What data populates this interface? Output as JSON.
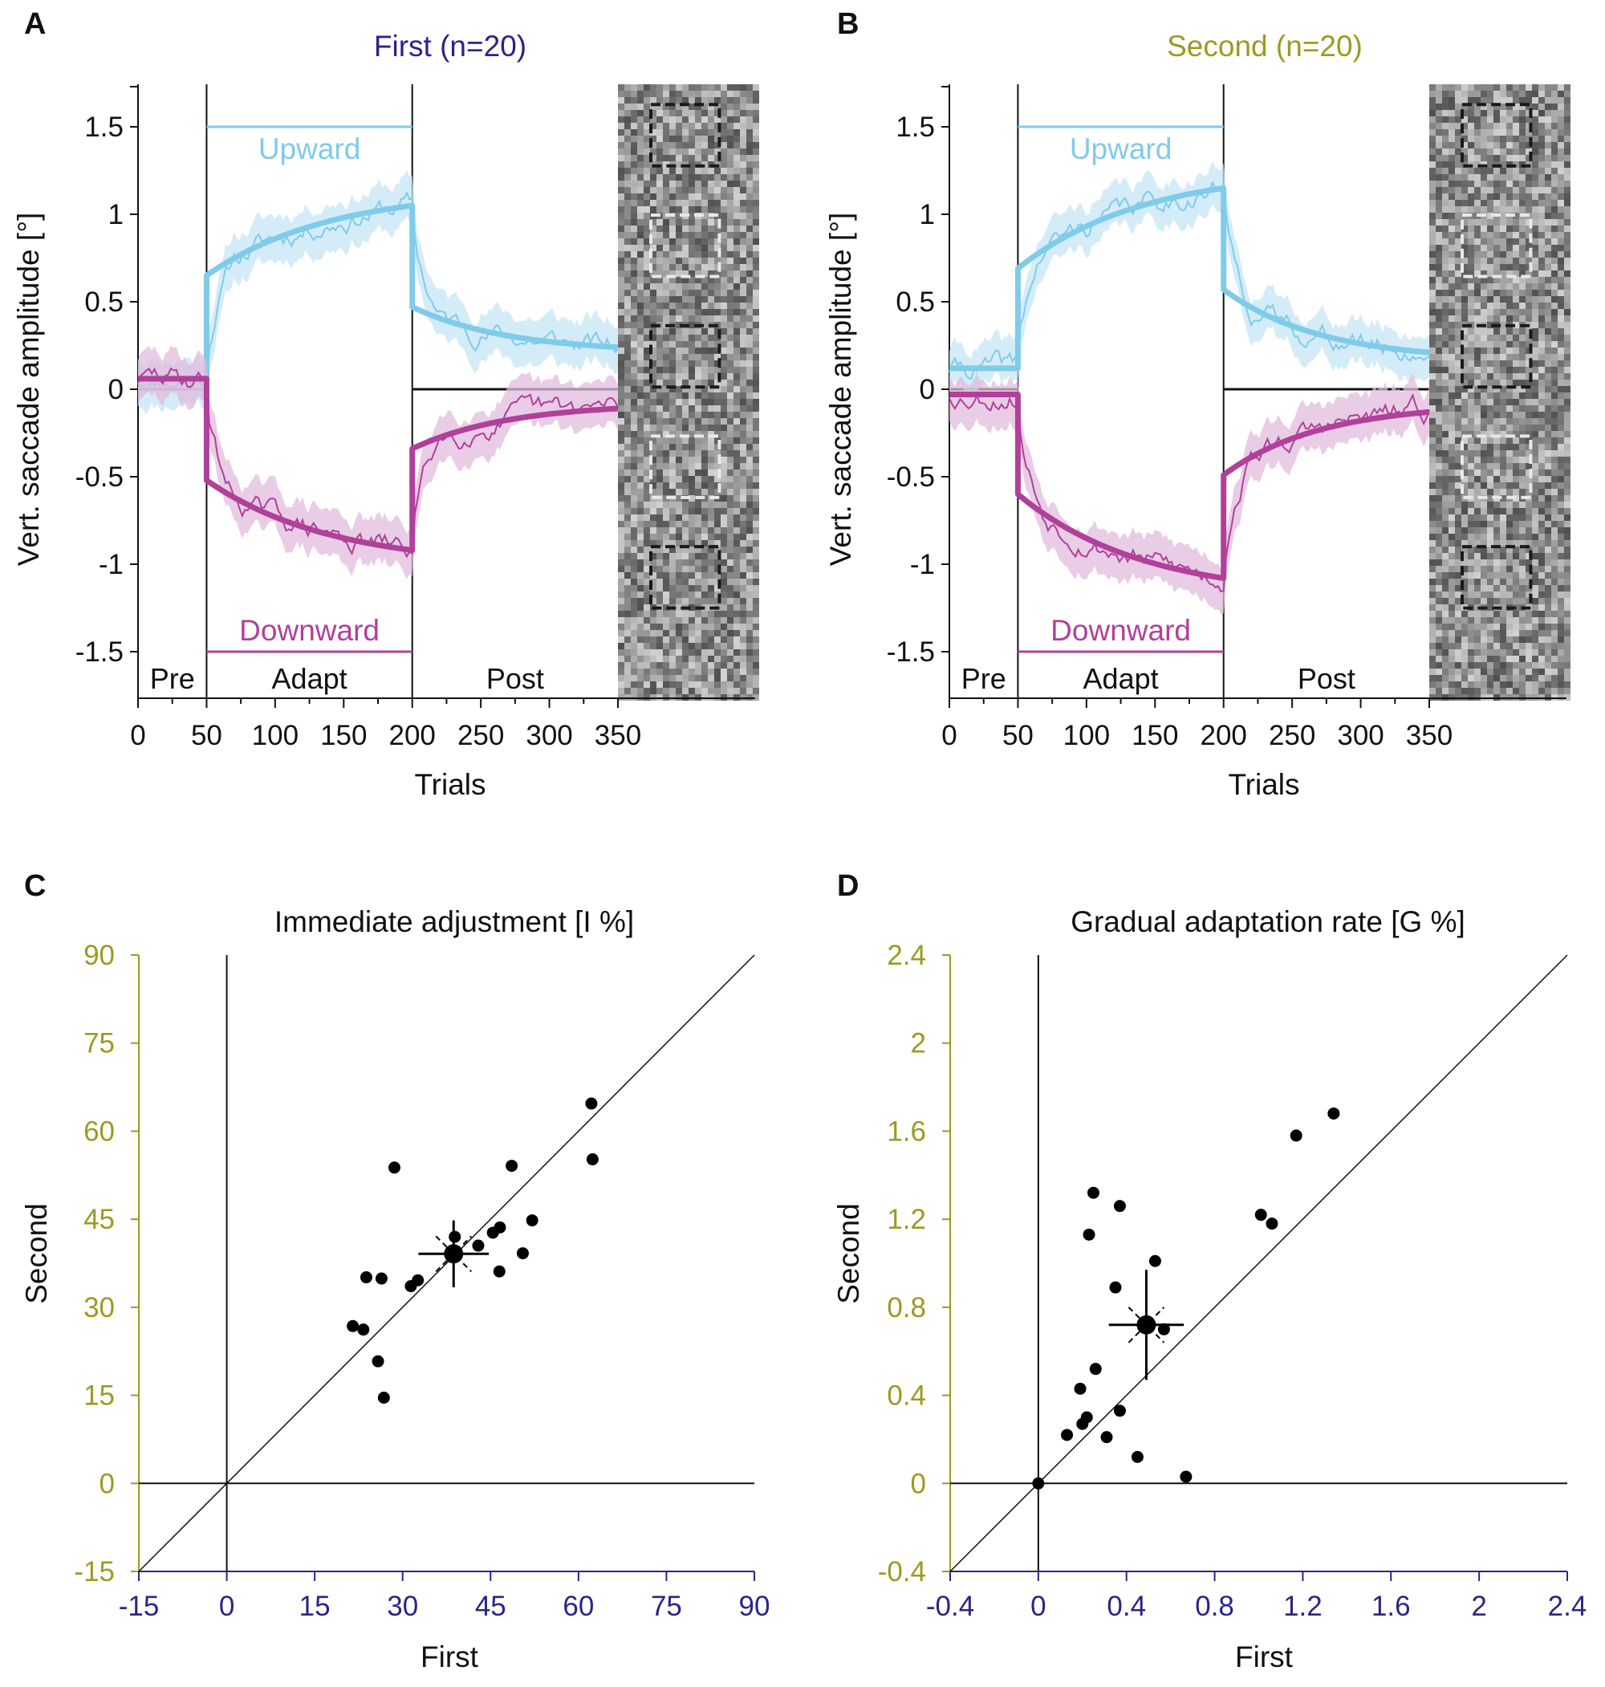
{
  "colors": {
    "first": "#2b2488",
    "second": "#9c9a22",
    "upward": "#7fcbea",
    "upward_band": "#c6e6f6",
    "downward": "#b0409a",
    "downward_band": "#e2bbdc",
    "axis": "#111111"
  },
  "chart_data": [
    {
      "panel": "A",
      "type": "line",
      "title": "First (n=20)",
      "title_color_key": "first",
      "xlabel": "Trials",
      "ylabel": "Vert. saccade amplitude [°]",
      "xlim": [
        0,
        450
      ],
      "ylim": [
        -1.75,
        1.75
      ],
      "xticks": [
        0,
        50,
        100,
        150,
        200,
        250,
        300,
        350
      ],
      "yticks": [
        -1.5,
        -1,
        -0.5,
        0,
        0.5,
        1,
        1.5
      ],
      "ytick_labels": [
        "-1.5",
        "-1",
        "-0.5",
        "0",
        "0.5",
        "1",
        "1.5"
      ],
      "phase_boundaries": [
        50,
        200
      ],
      "phases": [
        {
          "label": "Pre",
          "start": 0,
          "end": 50
        },
        {
          "label": "Adapt",
          "start": 50,
          "end": 200
        },
        {
          "label": "Post",
          "start": 200,
          "end": 350
        }
      ],
      "target_steps": [
        {
          "label": "Upward",
          "value": 1.5,
          "start": 50,
          "end": 200
        },
        {
          "label": "Downward",
          "value": -1.5,
          "start": 50,
          "end": 200
        }
      ],
      "zero_line": {
        "start": 200,
        "end": 350
      },
      "stimulus_panel": {
        "start": 350,
        "end": 450
      },
      "series": [
        {
          "name": "Upward",
          "color_key": "upward",
          "pre": 0.06,
          "adapt_start": 0.65,
          "adapt_end": 1.05,
          "post_start": 0.47,
          "post_end": 0.24,
          "band": 0.13,
          "noise_seed": 11
        },
        {
          "name": "Downward",
          "color_key": "downward",
          "pre": 0.06,
          "adapt_start": -0.52,
          "adapt_end": -0.92,
          "post_start": -0.34,
          "post_end": -0.11,
          "band": 0.13,
          "noise_seed": 29
        }
      ]
    },
    {
      "panel": "B",
      "type": "line",
      "title": "Second (n=20)",
      "title_color_key": "second",
      "xlabel": "Trials",
      "ylabel": "Vert. saccade amplitude [°]",
      "xlim": [
        0,
        450
      ],
      "ylim": [
        -1.75,
        1.75
      ],
      "xticks": [
        0,
        50,
        100,
        150,
        200,
        250,
        300,
        350
      ],
      "yticks": [
        -1.5,
        -1,
        -0.5,
        0,
        0.5,
        1,
        1.5
      ],
      "ytick_labels": [
        "-1.5",
        "-1",
        "-0.5",
        "0",
        "0.5",
        "1",
        "1.5"
      ],
      "phase_boundaries": [
        50,
        200
      ],
      "phases": [
        {
          "label": "Pre",
          "start": 0,
          "end": 50
        },
        {
          "label": "Adapt",
          "start": 50,
          "end": 200
        },
        {
          "label": "Post",
          "start": 200,
          "end": 350
        }
      ],
      "target_steps": [
        {
          "label": "Upward",
          "value": 1.5,
          "start": 50,
          "end": 200
        },
        {
          "label": "Downward",
          "value": -1.5,
          "start": 50,
          "end": 200
        }
      ],
      "zero_line": {
        "start": 200,
        "end": 350
      },
      "stimulus_panel": {
        "start": 350,
        "end": 450
      },
      "series": [
        {
          "name": "Upward",
          "color_key": "upward",
          "pre": 0.12,
          "adapt_start": 0.69,
          "adapt_end": 1.15,
          "post_start": 0.57,
          "post_end": 0.21,
          "band": 0.12,
          "noise_seed": 41
        },
        {
          "name": "Downward",
          "color_key": "downward",
          "pre": -0.03,
          "adapt_start": -0.6,
          "adapt_end": -1.08,
          "post_start": -0.49,
          "post_end": -0.13,
          "band": 0.13,
          "noise_seed": 53
        }
      ]
    },
    {
      "panel": "C",
      "type": "scatter",
      "title": "Immediate adjustment [I %]",
      "xlabel": "First",
      "ylabel": "Second",
      "xlim": [
        -15,
        90
      ],
      "ylim": [
        -15,
        90
      ],
      "xticks": [
        -15,
        0,
        15,
        30,
        45,
        60,
        75,
        90
      ],
      "yticks": [
        -15,
        0,
        15,
        30,
        45,
        60,
        75,
        90
      ],
      "xtick_labels": [
        "-15",
        "0",
        "15",
        "30",
        "45",
        "60",
        "75",
        "90"
      ],
      "ytick_labels": [
        "-15",
        "0",
        "15",
        "30",
        "45",
        "60",
        "75",
        "90"
      ],
      "identity_line": true,
      "points": [
        [
          21.5,
          26.8
        ],
        [
          23.3,
          26.2
        ],
        [
          23.8,
          35.1
        ],
        [
          25.8,
          20.8
        ],
        [
          26.4,
          34.9
        ],
        [
          26.8,
          14.6
        ],
        [
          28.6,
          53.8
        ],
        [
          31.4,
          33.6
        ],
        [
          32.6,
          34.6
        ],
        [
          38.9,
          42.0
        ],
        [
          42.9,
          40.5
        ],
        [
          45.4,
          42.7
        ],
        [
          46.5,
          36.1
        ],
        [
          46.6,
          43.6
        ],
        [
          48.6,
          54.1
        ],
        [
          50.5,
          39.2
        ],
        [
          52.1,
          44.8
        ],
        [
          62.2,
          64.7
        ],
        [
          62.4,
          55.2
        ]
      ],
      "mean": {
        "x": 38.7,
        "y": 39.1,
        "x_err": 6.0,
        "y_err": 5.7
      }
    },
    {
      "panel": "D",
      "type": "scatter",
      "title": "Gradual adaptation rate [G %]",
      "xlabel": "First",
      "ylabel": "Second",
      "xlim": [
        -0.4,
        2.4
      ],
      "ylim": [
        -0.4,
        2.4
      ],
      "xticks": [
        -0.4,
        0,
        0.4,
        0.8,
        1.2,
        1.6,
        2,
        2.4
      ],
      "yticks": [
        -0.4,
        0,
        0.4,
        0.8,
        1.2,
        1.6,
        2,
        2.4
      ],
      "xtick_labels": [
        "-0.4",
        "0",
        "0.4",
        "0.8",
        "1.2",
        "1.6",
        "2",
        "2.4"
      ],
      "ytick_labels": [
        "-0.4",
        "0",
        "0.4",
        "0.8",
        "1.2",
        "1.6",
        "2",
        "2.4"
      ],
      "identity_line": true,
      "points": [
        [
          0.0,
          0.0
        ],
        [
          0.13,
          0.22
        ],
        [
          0.19,
          0.43
        ],
        [
          0.2,
          0.27
        ],
        [
          0.22,
          0.3
        ],
        [
          0.23,
          1.13
        ],
        [
          0.25,
          1.32
        ],
        [
          0.26,
          0.52
        ],
        [
          0.31,
          0.21
        ],
        [
          0.35,
          0.89
        ],
        [
          0.37,
          1.26
        ],
        [
          0.37,
          0.33
        ],
        [
          0.45,
          0.12
        ],
        [
          0.53,
          1.01
        ],
        [
          0.57,
          0.7
        ],
        [
          0.67,
          0.03
        ],
        [
          1.01,
          1.22
        ],
        [
          1.06,
          1.18
        ],
        [
          1.17,
          1.58
        ],
        [
          1.34,
          1.68
        ]
      ],
      "mean": {
        "x": 0.49,
        "y": 0.72,
        "x_err": 0.17,
        "y_err": 0.25
      }
    }
  ]
}
